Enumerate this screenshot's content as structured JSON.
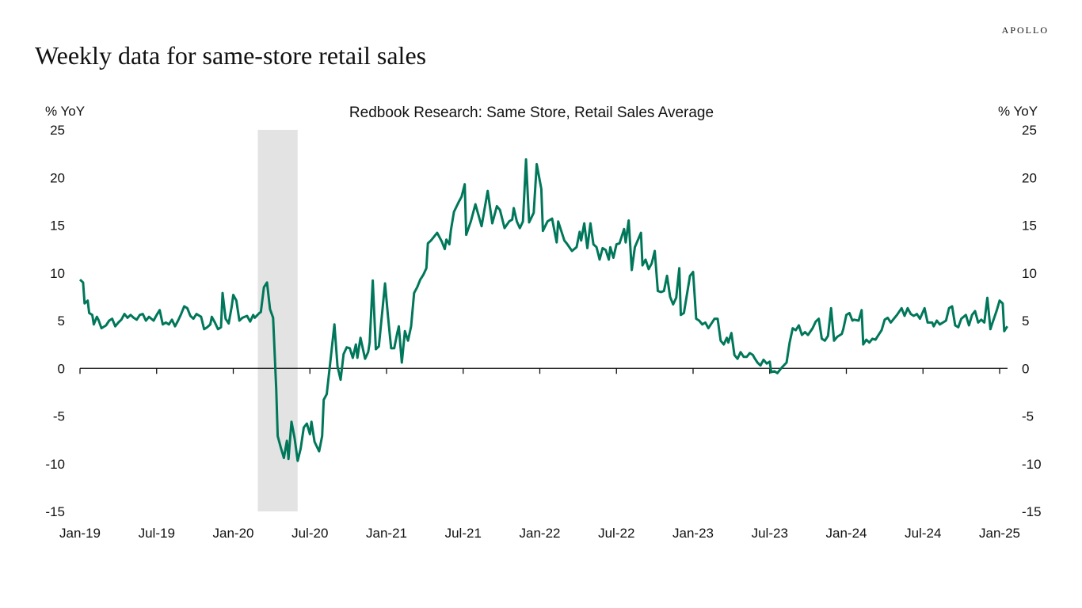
{
  "header": {
    "logo": "APOLLO",
    "title": "Weekly data for same-store retail sales"
  },
  "chart_data": {
    "type": "line",
    "title": "Redbook Research: Same Store, Retail Sales Average",
    "ylabel_left": "% YoY",
    "ylabel_right": "% YoY",
    "xlabel": "",
    "ylim": [
      -15,
      25
    ],
    "yticks": [
      25,
      20,
      15,
      10,
      5,
      0,
      -5,
      -10,
      -15
    ],
    "xlim": [
      2019,
      2025
    ],
    "xticks": [
      2019,
      2019.5,
      2020,
      2020.5,
      2021,
      2021.5,
      2022,
      2022.5,
      2023,
      2023.5,
      2024,
      2024.5,
      2025
    ],
    "xtick_labels": [
      "Jan-19",
      "Jul-19",
      "Jan-20",
      "Jul-20",
      "Jan-21",
      "Jul-21",
      "Jan-22",
      "Jul-22",
      "Jan-23",
      "Jul-23",
      "Jan-24",
      "Jul-24",
      "Jan-25"
    ],
    "grid": false,
    "recession_shading": [
      2020.16,
      2020.42
    ],
    "line_color": "#00775a",
    "shade_color": "#e3e3e3",
    "series": [
      {
        "name": "Redbook same-store retail sales, % YoY",
        "x": [
          2019.0,
          2019.02,
          2019.03,
          2019.05,
          2019.06,
          2019.08,
          2019.09,
          2019.11,
          2019.12,
          2019.14,
          2019.17,
          2019.19,
          2019.21,
          2019.23,
          2019.25,
          2019.27,
          2019.29,
          2019.31,
          2019.33,
          2019.35,
          2019.37,
          2019.39,
          2019.41,
          2019.43,
          2019.45,
          2019.48,
          2019.5,
          2019.52,
          2019.54,
          2019.56,
          2019.58,
          2019.6,
          2019.62,
          2019.64,
          2019.66,
          2019.68,
          2019.7,
          2019.72,
          2019.74,
          2019.76,
          2019.79,
          2019.81,
          2019.83,
          2019.85,
          2019.86,
          2019.88,
          2019.9,
          2019.92,
          2019.93,
          2019.95,
          2019.97,
          2019.99,
          2020.0,
          2020.02,
          2020.04,
          2020.06,
          2020.09,
          2020.11,
          2020.13,
          2020.14,
          2020.17,
          2020.18,
          2020.2,
          2020.22,
          2020.24,
          2020.26,
          2020.28,
          2020.29,
          2020.31,
          2020.33,
          2020.35,
          2020.36,
          2020.38,
          2020.4,
          2020.42,
          2020.44,
          2020.46,
          2020.48,
          2020.5,
          2020.51,
          2020.53,
          2020.56,
          2020.58,
          2020.59,
          2020.61,
          2020.63,
          2020.66,
          2020.68,
          2020.7,
          2020.72,
          2020.74,
          2020.76,
          2020.78,
          2020.8,
          2020.81,
          2020.83,
          2020.86,
          2020.88,
          2020.89,
          2020.91,
          2020.93,
          2020.95,
          2020.99,
          2021.01,
          2021.03,
          2021.05,
          2021.07,
          2021.08,
          2021.1,
          2021.12,
          2021.14,
          2021.16,
          2021.18,
          2021.2,
          2021.22,
          2021.24,
          2021.26,
          2021.27,
          2021.29,
          2021.33,
          2021.36,
          2021.38,
          2021.39,
          2021.41,
          2021.42,
          2021.44,
          2021.47,
          2021.49,
          2021.51,
          2021.52,
          2021.55,
          2021.58,
          2021.62,
          2021.66,
          2021.69,
          2021.72,
          2021.74,
          2021.77,
          2021.8,
          2021.82,
          2021.83,
          2021.85,
          2021.87,
          2021.89,
          2021.91,
          2021.93,
          2021.96,
          2021.98,
          2022.01,
          2022.02,
          2022.05,
          2022.08,
          2022.11,
          2022.12,
          2022.16,
          2022.18,
          2022.21,
          2022.24,
          2022.26,
          2022.27,
          2022.29,
          2022.31,
          2022.33,
          2022.35,
          2022.37,
          2022.39,
          2022.41,
          2022.43,
          2022.45,
          2022.46,
          2022.48,
          2022.5,
          2022.52,
          2022.55,
          2022.56,
          2022.58,
          2022.6,
          2022.62,
          2022.66,
          2022.67,
          2022.69,
          2022.71,
          2022.73,
          2022.75,
          2022.77,
          2022.79,
          2022.81,
          2022.83,
          2022.85,
          2022.87,
          2022.89,
          2022.91,
          2022.92,
          2022.94,
          2022.98,
          2023.0,
          2023.02,
          2023.04,
          2023.06,
          2023.08,
          2023.1,
          2023.14,
          2023.16,
          2023.18,
          2023.2,
          2023.22,
          2023.23,
          2023.25,
          2023.27,
          2023.29,
          2023.31,
          2023.33,
          2023.35,
          2023.37,
          2023.39,
          2023.4,
          2023.42,
          2023.44,
          2023.46,
          2023.48,
          2023.5,
          2023.51,
          2023.53,
          2023.55,
          2023.58,
          2023.61,
          2023.63,
          2023.65,
          2023.67,
          2023.69,
          2023.71,
          2023.73,
          2023.75,
          2023.78,
          2023.8,
          2023.82,
          2023.84,
          2023.86,
          2023.88,
          2023.9,
          2023.92,
          2023.94,
          2023.97,
          2023.98,
          2024.0,
          2024.02,
          2024.04,
          2024.05,
          2024.08,
          2024.1,
          2024.11,
          2024.13,
          2024.15,
          2024.17,
          2024.19,
          2024.21,
          2024.23,
          2024.25,
          2024.27,
          2024.29,
          2024.31,
          2024.33,
          2024.36,
          2024.38,
          2024.4,
          2024.42,
          2024.44,
          2024.46,
          2024.48,
          2024.51,
          2024.53,
          2024.56,
          2024.57,
          2024.59,
          2024.61,
          2024.65,
          2024.67,
          2024.69,
          2024.71,
          2024.73,
          2024.75,
          2024.78,
          2024.8,
          2024.82,
          2024.84,
          2024.86,
          2024.88,
          2024.9,
          2024.92,
          2024.94,
          2024.95,
          2024.98,
          2025.0,
          2025.02,
          2025.03,
          2025.05
        ],
        "y": [
          9.3,
          9.0,
          6.8,
          7.1,
          5.8,
          5.6,
          4.6,
          5.4,
          5.1,
          4.2,
          4.5,
          5.0,
          5.2,
          4.4,
          4.8,
          5.1,
          5.7,
          5.3,
          5.6,
          5.3,
          5.1,
          5.6,
          5.7,
          5.0,
          5.4,
          5.0,
          5.6,
          6.1,
          4.6,
          4.8,
          4.6,
          5.1,
          4.4,
          5.0,
          5.7,
          6.5,
          6.3,
          5.5,
          5.2,
          5.7,
          5.4,
          4.1,
          4.3,
          4.6,
          5.4,
          4.8,
          4.1,
          4.3,
          7.9,
          5.2,
          4.7,
          6.5,
          7.7,
          7.1,
          5.0,
          5.3,
          5.5,
          4.9,
          5.6,
          5.3,
          5.8,
          5.9,
          8.5,
          9.0,
          6.2,
          5.3,
          -2.1,
          -7.1,
          -8.3,
          -9.4,
          -7.6,
          -9.5,
          -5.6,
          -7.3,
          -9.7,
          -8.4,
          -6.2,
          -5.8,
          -6.9,
          -5.6,
          -7.7,
          -8.7,
          -7.1,
          -3.3,
          -2.7,
          0.2,
          4.6,
          0.2,
          -1.2,
          1.5,
          2.2,
          2.1,
          1.1,
          2.5,
          1.1,
          3.2,
          1.0,
          1.7,
          2.7,
          9.2,
          2.0,
          2.3,
          8.9,
          5.4,
          2.1,
          2.1,
          3.7,
          4.4,
          0.6,
          3.9,
          2.9,
          4.4,
          7.9,
          8.5,
          9.3,
          9.8,
          10.5,
          13.1,
          13.4,
          14.2,
          13.3,
          12.5,
          13.5,
          13.0,
          14.5,
          16.4,
          17.4,
          18.0,
          19.3,
          14.0,
          15.4,
          17.2,
          14.9,
          18.6,
          15.2,
          17.0,
          16.6,
          14.7,
          15.4,
          15.6,
          16.8,
          15.4,
          14.7,
          15.4,
          21.9,
          15.3,
          16.3,
          21.4,
          18.8,
          14.4,
          15.4,
          15.7,
          13.2,
          15.4,
          13.4,
          13.0,
          12.3,
          12.7,
          14.3,
          13.4,
          15.2,
          12.6,
          15.2,
          13.0,
          12.7,
          11.4,
          12.6,
          12.4,
          11.4,
          12.7,
          11.6,
          13.0,
          13.1,
          14.6,
          13.2,
          15.5,
          10.3,
          12.7,
          14.2,
          10.8,
          11.4,
          10.4,
          11.0,
          12.3,
          8.1,
          8.0,
          8.1,
          9.7,
          7.5,
          6.7,
          7.4,
          10.5,
          5.6,
          5.8,
          9.7,
          10.1,
          5.2,
          5.0,
          4.6,
          4.8,
          4.2,
          5.2,
          5.2,
          2.9,
          2.5,
          3.2,
          2.7,
          3.7,
          1.4,
          1.0,
          1.7,
          1.2,
          1.2,
          1.6,
          1.4,
          1.1,
          0.6,
          0.3,
          0.9,
          0.5,
          0.7,
          -0.4,
          -0.3,
          -0.5,
          0.1,
          0.6,
          2.7,
          4.2,
          4.0,
          4.5,
          3.5,
          3.8,
          3.5,
          4.2,
          4.9,
          5.2,
          3.1,
          2.9,
          3.4,
          6.3,
          2.9,
          3.3,
          3.6,
          4.1,
          5.6,
          5.8,
          5.0,
          5.1,
          5.0,
          6.1,
          2.5,
          3.0,
          2.7,
          3.1,
          3.0,
          3.5,
          4.0,
          5.1,
          5.3,
          4.8,
          5.2,
          5.6,
          6.3,
          5.5,
          6.3,
          5.7,
          5.5,
          5.7,
          5.2,
          6.3,
          4.8,
          4.8,
          4.4,
          5.0,
          4.6,
          5.0,
          6.3,
          6.5,
          4.5,
          4.3,
          5.2,
          5.6,
          4.5,
          5.6,
          6.0,
          4.8,
          5.1,
          4.8,
          7.4,
          4.1,
          4.6,
          6.0,
          7.1,
          6.8,
          3.9,
          4.4
        ]
      }
    ]
  }
}
